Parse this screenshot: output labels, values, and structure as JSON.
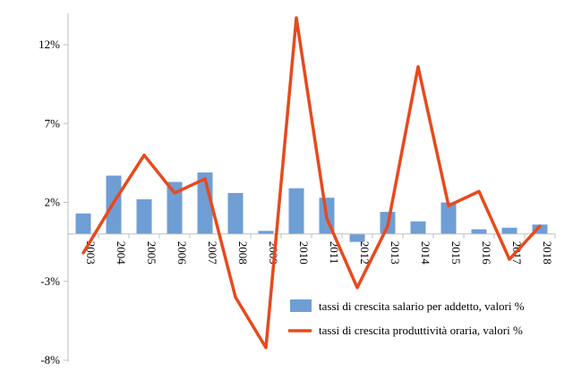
{
  "chart_data": {
    "type": "bar+line",
    "title": "",
    "xlabel": "",
    "ylabel": "",
    "ylim": [
      -8,
      14
    ],
    "y_ticks": [
      "-8%",
      "-3%",
      "2%",
      "7%",
      "12%"
    ],
    "y_tick_values": [
      -8,
      -3,
      2,
      7,
      12
    ],
    "grid": false,
    "legend_position": "bottom-right",
    "categories": [
      "2003",
      "2004",
      "2005",
      "2006",
      "2007",
      "2008",
      "2009",
      "2010",
      "2011",
      "2012",
      "2013",
      "2014",
      "2015",
      "2016",
      "2017",
      "2018"
    ],
    "series": [
      {
        "name": "tassi di crescita salario per addetto, valori %",
        "type": "bar",
        "color": "#6F9ED4",
        "values": [
          1.3,
          3.7,
          2.2,
          3.3,
          3.9,
          2.6,
          0.2,
          2.9,
          2.3,
          -0.5,
          1.4,
          0.8,
          2.0,
          0.3,
          0.4,
          0.6
        ]
      },
      {
        "name": "tassi di crescita produttività oraria, valori %",
        "type": "line",
        "color": "#E8491D",
        "values": [
          -1.2,
          2.0,
          5.0,
          2.6,
          3.5,
          -4.0,
          -7.2,
          13.7,
          1.0,
          -3.4,
          0.5,
          10.6,
          1.8,
          2.7,
          -1.6,
          0.5
        ]
      }
    ]
  }
}
